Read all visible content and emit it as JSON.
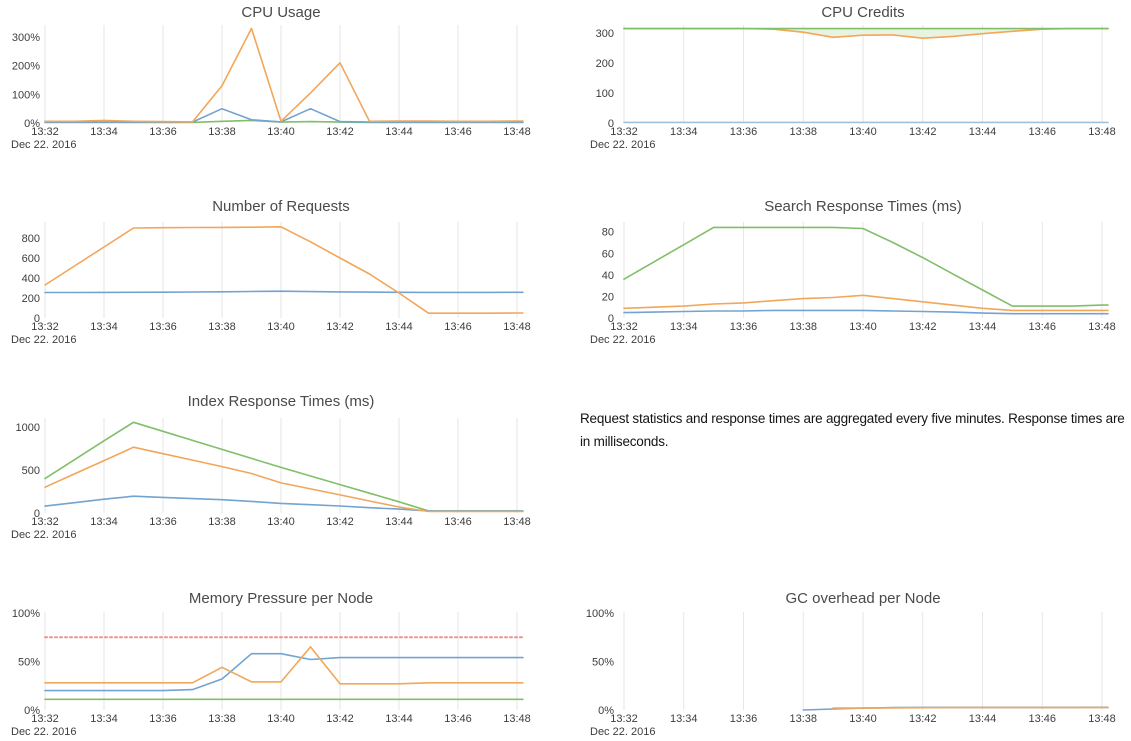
{
  "note": {
    "text": "Request statistics and response times are aggregated every five minutes. Response times are in milliseconds."
  },
  "x_axis": {
    "tick_labels": [
      "13:32",
      "13:34",
      "13:36",
      "13:38",
      "13:40",
      "13:42",
      "13:44",
      "13:46",
      "13:48"
    ],
    "date_label": "Dec 22. 2016"
  },
  "colors": {
    "blue": "#73a3d0",
    "orange": "#f2a65a",
    "green": "#80bf69",
    "threshold_red": "#ee9090",
    "gridline": "#e6e6e6"
  },
  "chart_data": [
    {
      "id": "cpu-usage",
      "type": "line",
      "title": "CPU Usage",
      "xlabel": "Dec 22. 2016",
      "ylim": [
        0,
        342
      ],
      "y_ticks": [
        {
          "value": 0,
          "label": "0%"
        },
        {
          "value": 100,
          "label": "100%"
        },
        {
          "value": 200,
          "label": "200%"
        },
        {
          "value": 300,
          "label": "300%"
        }
      ],
      "series": [
        {
          "name": "green",
          "color": "#80bf69",
          "dash": null,
          "x": [
            0,
            1,
            2,
            3,
            4,
            5,
            6,
            7,
            8,
            9,
            10,
            11,
            12,
            13,
            14,
            15,
            16
          ],
          "y": [
            2,
            2,
            2,
            2,
            2,
            2,
            6,
            9,
            3,
            5,
            3,
            2,
            2,
            2,
            2,
            2,
            2
          ]
        },
        {
          "name": "blue",
          "color": "#73a3d0",
          "dash": null,
          "x": [
            0,
            1,
            2,
            3,
            4,
            5,
            6,
            7,
            8,
            9,
            10,
            11,
            12,
            13,
            14,
            15,
            16
          ],
          "y": [
            3,
            3,
            3,
            3,
            3,
            3,
            50,
            11,
            4,
            50,
            5,
            3,
            3,
            3,
            3,
            3,
            3
          ]
        },
        {
          "name": "orange",
          "color": "#f2a65a",
          "dash": null,
          "x": [
            0,
            1,
            2,
            3,
            4,
            5,
            6,
            7,
            8,
            9,
            10,
            11,
            12,
            13,
            14,
            15,
            16
          ],
          "y": [
            6,
            6,
            9,
            6,
            5,
            4,
            130,
            330,
            6,
            105,
            210,
            6,
            7,
            7,
            6,
            6,
            7
          ]
        }
      ]
    },
    {
      "id": "cpu-credits",
      "type": "line",
      "title": "CPU Credits",
      "xlabel": "Dec 22. 2016",
      "ylim": [
        0,
        327
      ],
      "y_ticks": [
        {
          "value": 0,
          "label": "0"
        },
        {
          "value": 100,
          "label": "100"
        },
        {
          "value": 200,
          "label": "200"
        },
        {
          "value": 300,
          "label": "300"
        }
      ],
      "band": {
        "upper": 1,
        "lower": 0,
        "color": "#e9f4e0"
      },
      "series": [
        {
          "name": "orange",
          "color": "#f2a65a",
          "dash": null,
          "x": [
            0,
            1,
            2,
            3,
            4,
            5,
            6,
            7,
            8,
            9,
            10,
            11,
            12,
            13,
            14,
            15,
            16
          ],
          "y": [
            315,
            315,
            315,
            315,
            315,
            313,
            303,
            286,
            293,
            294,
            283,
            289,
            298,
            306,
            313,
            315,
            315
          ]
        },
        {
          "name": "green",
          "color": "#80bf69",
          "dash": null,
          "x": [
            0,
            1,
            2,
            3,
            4,
            5,
            6,
            7,
            8,
            9,
            10,
            11,
            12,
            13,
            14,
            15,
            16
          ],
          "y": [
            315,
            315,
            315,
            315,
            315,
            315,
            315,
            315,
            315,
            315,
            315,
            315,
            315,
            315,
            315,
            315,
            315
          ]
        },
        {
          "name": "blue",
          "color": "#9dc2e0",
          "dash": null,
          "x": [
            0,
            1,
            2,
            3,
            4,
            5,
            6,
            7,
            8,
            9,
            10,
            11,
            12,
            13,
            14,
            15,
            16
          ],
          "y": [
            2,
            2,
            2,
            2,
            2,
            2,
            2,
            2,
            2,
            2,
            2,
            2,
            2,
            2,
            2,
            2,
            2
          ]
        }
      ]
    },
    {
      "id": "number-of-requests",
      "type": "line",
      "title": "Number of Requests",
      "xlabel": "Dec 22. 2016",
      "ylim": [
        0,
        960
      ],
      "y_ticks": [
        {
          "value": 0,
          "label": "0"
        },
        {
          "value": 200,
          "label": "200"
        },
        {
          "value": 400,
          "label": "400"
        },
        {
          "value": 600,
          "label": "600"
        },
        {
          "value": 800,
          "label": "800"
        }
      ],
      "series": [
        {
          "name": "blue",
          "color": "#73a3d0",
          "dash": null,
          "x": [
            0,
            1,
            2,
            3,
            4,
            5,
            6,
            7,
            8,
            9,
            10,
            11,
            12,
            13,
            14,
            15,
            16
          ],
          "y": [
            255,
            255,
            256,
            257,
            258,
            260,
            262,
            265,
            268,
            264,
            261,
            259,
            257,
            256,
            256,
            256,
            257
          ]
        },
        {
          "name": "orange",
          "color": "#f2a65a",
          "dash": null,
          "x": [
            0,
            1,
            2,
            3,
            4,
            5,
            6,
            7,
            8,
            9,
            10,
            11,
            12,
            13,
            14,
            15,
            16
          ],
          "y": [
            330,
            520,
            710,
            900,
            903,
            905,
            906,
            908,
            912,
            762,
            600,
            440,
            250,
            48,
            48,
            48,
            50
          ]
        }
      ]
    },
    {
      "id": "search-response-times",
      "type": "line",
      "title": "Search Response Times (ms)",
      "xlabel": "Dec 22. 2016",
      "ylim": [
        0,
        89
      ],
      "y_ticks": [
        {
          "value": 0,
          "label": "0"
        },
        {
          "value": 20,
          "label": "20"
        },
        {
          "value": 40,
          "label": "40"
        },
        {
          "value": 60,
          "label": "60"
        },
        {
          "value": 80,
          "label": "80"
        }
      ],
      "series": [
        {
          "name": "green",
          "color": "#80bf69",
          "dash": null,
          "x": [
            0,
            1,
            2,
            3,
            4,
            5,
            6,
            7,
            8,
            9,
            10,
            11,
            12,
            13,
            14,
            15,
            16
          ],
          "y": [
            36,
            52,
            68,
            84,
            84,
            84,
            84,
            84,
            83,
            70,
            56,
            41,
            26,
            11,
            11,
            11,
            12
          ]
        },
        {
          "name": "blue",
          "color": "#73a3d0",
          "dash": null,
          "x": [
            0,
            1,
            2,
            3,
            4,
            5,
            6,
            7,
            8,
            9,
            10,
            11,
            12,
            13,
            14,
            15,
            16
          ],
          "y": [
            5,
            5.5,
            6,
            6.5,
            6.5,
            7,
            7,
            7,
            7,
            6.5,
            6,
            5.5,
            4.5,
            4,
            4,
            4,
            4
          ]
        },
        {
          "name": "orange",
          "color": "#f2a65a",
          "dash": null,
          "x": [
            0,
            1,
            2,
            3,
            4,
            5,
            6,
            7,
            8,
            9,
            10,
            11,
            12,
            13,
            14,
            15,
            16
          ],
          "y": [
            9,
            10,
            11,
            13,
            14,
            16,
            18,
            19,
            21,
            18,
            15,
            12,
            9,
            7,
            7,
            7,
            7
          ]
        }
      ]
    },
    {
      "id": "index-response-times",
      "type": "line",
      "title": "Index Response Times (ms)",
      "xlabel": "Dec 22. 2016",
      "ylim": [
        0,
        1105
      ],
      "y_ticks": [
        {
          "value": 0,
          "label": "0"
        },
        {
          "value": 500,
          "label": "500"
        },
        {
          "value": 1000,
          "label": "1000"
        }
      ],
      "series": [
        {
          "name": "green",
          "color": "#80bf69",
          "dash": null,
          "x": [
            0,
            1,
            2,
            3,
            4,
            5,
            6,
            7,
            8,
            9,
            10,
            11,
            12,
            13,
            14,
            15,
            16
          ],
          "y": [
            400,
            620,
            840,
            1055,
            950,
            845,
            740,
            635,
            530,
            430,
            330,
            230,
            130,
            25,
            25,
            25,
            25
          ]
        },
        {
          "name": "blue",
          "color": "#73a3d0",
          "dash": null,
          "x": [
            0,
            1,
            2,
            3,
            4,
            5,
            6,
            7,
            8,
            9,
            10,
            11,
            12,
            13,
            14,
            15,
            16
          ],
          "y": [
            80,
            120,
            160,
            195,
            182,
            168,
            155,
            135,
            112,
            97,
            82,
            62,
            45,
            25,
            22,
            22,
            22
          ]
        },
        {
          "name": "orange",
          "color": "#f2a65a",
          "dash": null,
          "x": [
            0,
            1,
            2,
            3,
            4,
            5,
            6,
            7,
            8,
            9,
            10,
            11,
            12,
            13,
            14,
            15,
            16
          ],
          "y": [
            300,
            455,
            610,
            765,
            690,
            615,
            540,
            460,
            350,
            280,
            210,
            140,
            70,
            18,
            18,
            18,
            18
          ]
        }
      ]
    },
    {
      "id": "memory-pressure-per-node",
      "type": "line",
      "title": "Memory Pressure per Node",
      "xlabel": "Dec 22. 2016",
      "ylim": [
        0,
        101
      ],
      "y_ticks": [
        {
          "value": 0,
          "label": "0%"
        },
        {
          "value": 50,
          "label": "50%"
        },
        {
          "value": 100,
          "label": "100%"
        }
      ],
      "series": [
        {
          "name": "threshold",
          "color": "#ee9090",
          "dash": "2,3",
          "x": [
            0,
            16
          ],
          "y": [
            75,
            75
          ]
        },
        {
          "name": "green",
          "color": "#80bf69",
          "dash": null,
          "x": [
            0,
            1,
            2,
            3,
            4,
            5,
            6,
            7,
            8,
            9,
            10,
            11,
            12,
            13,
            14,
            15,
            16
          ],
          "y": [
            11,
            11,
            11,
            11,
            11,
            11,
            11,
            11,
            11,
            11,
            11,
            11,
            11,
            11,
            11,
            11,
            11
          ]
        },
        {
          "name": "blue",
          "color": "#73a3d0",
          "dash": null,
          "x": [
            0,
            1,
            2,
            3,
            4,
            5,
            6,
            7,
            8,
            9,
            10,
            11,
            12,
            13,
            14,
            15,
            16
          ],
          "y": [
            20,
            20,
            20,
            20,
            20,
            21,
            32,
            58,
            58,
            52,
            54,
            54,
            54,
            54,
            54,
            54,
            54
          ]
        },
        {
          "name": "orange",
          "color": "#f2a65a",
          "dash": null,
          "x": [
            0,
            1,
            2,
            3,
            4,
            5,
            6,
            7,
            8,
            9,
            10,
            11,
            12,
            13,
            14,
            15,
            16
          ],
          "y": [
            28,
            28,
            28,
            28,
            28,
            28,
            44,
            29,
            29,
            65,
            27,
            27,
            27,
            28,
            28,
            28,
            28
          ]
        }
      ]
    },
    {
      "id": "gc-overhead-per-node",
      "type": "line",
      "title": "GC overhead per Node",
      "xlabel": "Dec 22. 2016",
      "ylim": [
        0,
        101
      ],
      "y_ticks": [
        {
          "value": 0,
          "label": "0%"
        },
        {
          "value": 50,
          "label": "50%"
        },
        {
          "value": 100,
          "label": "100%"
        }
      ],
      "series": [
        {
          "name": "blue",
          "color": "#73a3d0",
          "dash": null,
          "x": [
            6,
            7,
            8,
            9,
            10,
            11,
            12,
            13,
            14,
            15,
            16
          ],
          "y": [
            0,
            1,
            2,
            2.5,
            2.7,
            2.7,
            2.7,
            2.7,
            2.7,
            2.7,
            2.8
          ]
        },
        {
          "name": "orange",
          "color": "#f2a65a",
          "dash": null,
          "x": [
            7,
            8,
            9,
            10,
            11,
            12,
            13,
            14,
            15,
            16
          ],
          "y": [
            2,
            2,
            2.2,
            2.4,
            2.5,
            2.5,
            2.5,
            2.5,
            2.5,
            2.5
          ]
        }
      ]
    }
  ]
}
